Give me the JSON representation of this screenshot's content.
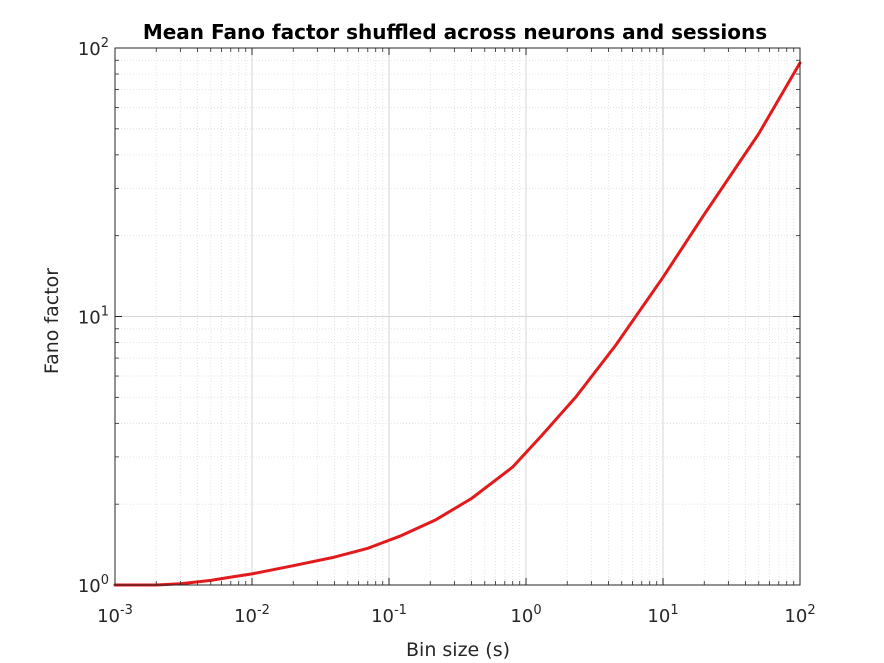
{
  "chart_data": {
    "type": "line",
    "title": "Mean Fano factor shuffled across neurons and sessions",
    "xlabel": "Bin size (s)",
    "ylabel": "Fano factor",
    "xscale": "log",
    "yscale": "log",
    "xlim": [
      0.001,
      100
    ],
    "ylim": [
      1,
      100
    ],
    "grid": true,
    "minor_grid": true,
    "x_ticks": [
      {
        "base": "10",
        "exp": "-3"
      },
      {
        "base": "10",
        "exp": "-2"
      },
      {
        "base": "10",
        "exp": "-1"
      },
      {
        "base": "10",
        "exp": "0"
      },
      {
        "base": "10",
        "exp": "1"
      },
      {
        "base": "10",
        "exp": "2"
      }
    ],
    "y_ticks": [
      {
        "base": "10",
        "exp": "0"
      },
      {
        "base": "10",
        "exp": "1"
      },
      {
        "base": "10",
        "exp": "2"
      }
    ],
    "series": [
      {
        "color": "#e31a1c",
        "x": [
          0.001,
          0.002,
          0.003,
          0.005,
          0.007,
          0.01,
          0.02,
          0.04,
          0.07,
          0.12,
          0.22,
          0.4,
          0.8,
          1.3,
          2.3,
          4.5,
          10,
          20,
          50,
          100
        ],
        "y": [
          1.0,
          1.0,
          1.01,
          1.04,
          1.07,
          1.1,
          1.18,
          1.27,
          1.37,
          1.52,
          1.75,
          2.1,
          2.75,
          3.6,
          5.0,
          7.8,
          14,
          24,
          48,
          88
        ]
      }
    ]
  }
}
